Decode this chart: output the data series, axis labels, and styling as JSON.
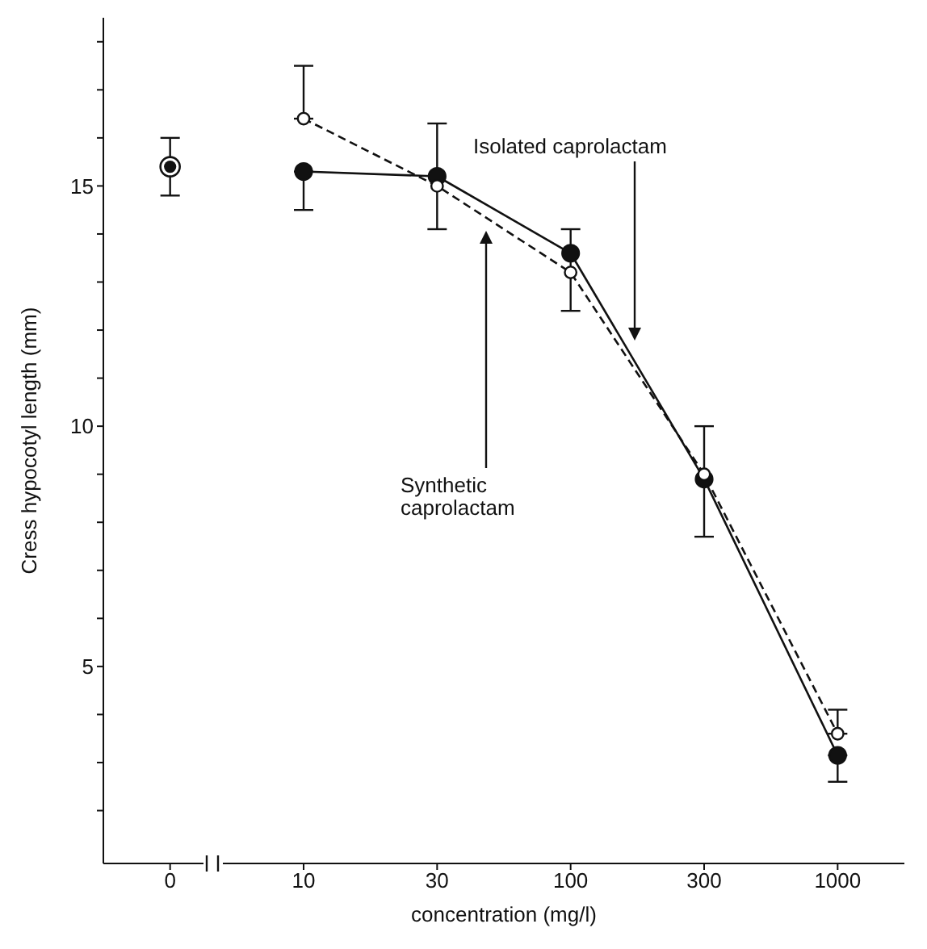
{
  "chart_data": {
    "type": "line",
    "xlabel": "concentration (mg/l)",
    "ylabel": "Cress hypocotyl length (mm)",
    "categories": [
      "0",
      "10",
      "30",
      "100",
      "300",
      "1000"
    ],
    "ylim": [
      0.9,
      18.5
    ],
    "yticks": [
      {
        "value": 2,
        "label": null
      },
      {
        "value": 3,
        "label": null
      },
      {
        "value": 4,
        "label": null
      },
      5,
      {
        "value": 6,
        "label": null
      },
      {
        "value": 7,
        "label": null
      },
      {
        "value": 8,
        "label": null
      },
      {
        "value": 9,
        "label": null
      },
      10,
      {
        "value": 11,
        "label": null
      },
      {
        "value": 12,
        "label": null
      },
      {
        "value": 13,
        "label": null
      },
      {
        "value": 14,
        "label": null
      },
      15,
      {
        "value": 16,
        "label": null
      },
      {
        "value": 17,
        "label": null
      },
      {
        "value": 18,
        "label": null
      }
    ],
    "marker": "circle",
    "grid": false,
    "legend": false,
    "series": [
      {
        "type": "scatter",
        "color": "#111111",
        "values": [
          15.4,
          null,
          null,
          null,
          null,
          null
        ],
        "errors": [
          [
            14.8,
            16.0
          ],
          null,
          null,
          null,
          null,
          null
        ]
      },
      {
        "color": "#111111",
        "line_style": "solid",
        "values": [
          null,
          15.3,
          15.2,
          13.6,
          8.9,
          3.15
        ],
        "errors": [
          null,
          [
            14.5,
            15.3
          ],
          [
            14.1,
            16.3
          ],
          null,
          [
            7.7,
            10.0
          ],
          [
            2.6,
            3.15
          ]
        ]
      },
      {
        "color": "#111111",
        "line_style": "dashed",
        "values": [
          null,
          16.4,
          15.0,
          13.2,
          9.0,
          3.6
        ],
        "errors": [
          null,
          [
            16.4,
            17.5
          ],
          null,
          [
            12.4,
            14.1
          ],
          null,
          [
            3.6,
            4.1
          ]
        ]
      }
    ],
    "annotations": [
      "Isolated caprolactam",
      "Synthetic caprolactam"
    ]
  }
}
